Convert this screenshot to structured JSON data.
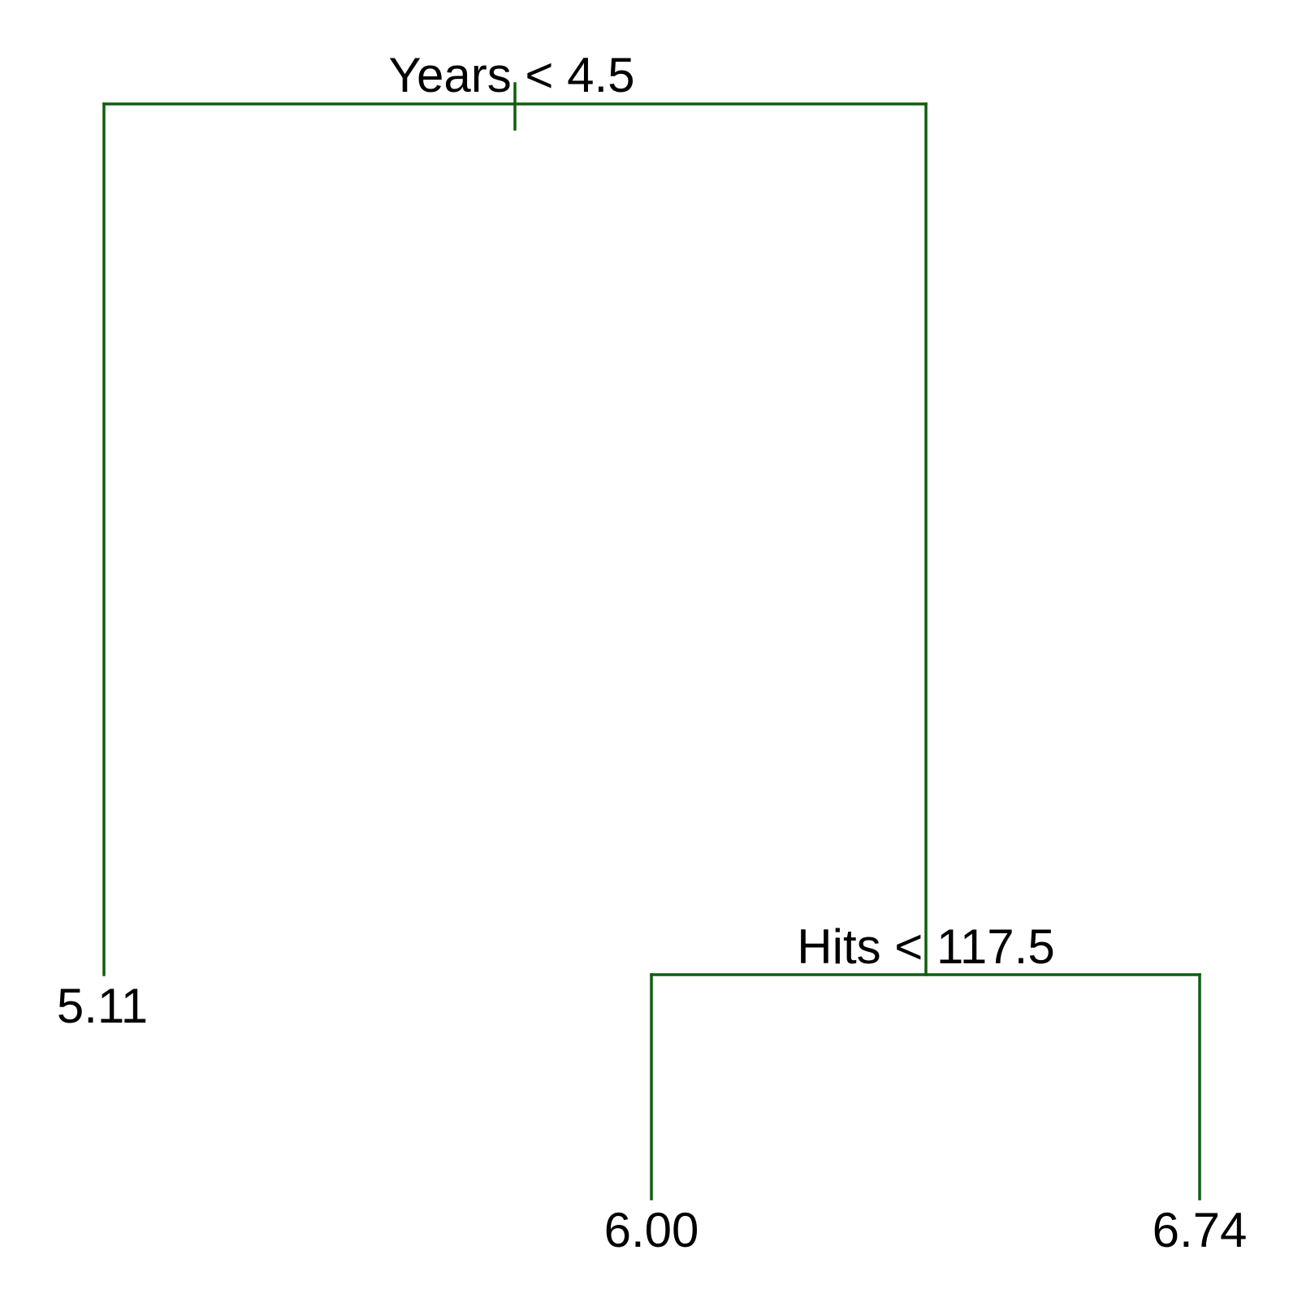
{
  "nodes": [
    {
      "label": "Years < 4.5"
    },
    {
      "label": "5.11"
    },
    {
      "label": "Hits < 117.5"
    },
    {
      "label": "6.00"
    },
    {
      "label": "6.74"
    }
  ]
}
